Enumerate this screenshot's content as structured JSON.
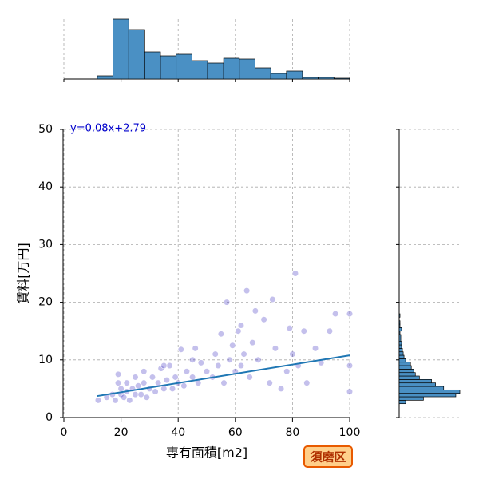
{
  "chart_data": [
    {
      "type": "scatter",
      "x_label": "専有面積[m2]",
      "y_label": "賃料[万円]",
      "color": "#3a2fc0",
      "x": [
        12,
        15,
        17,
        18,
        19,
        19,
        20,
        20,
        21,
        22,
        22,
        23,
        24,
        25,
        25,
        26,
        27,
        28,
        29,
        30,
        31,
        32,
        33,
        34,
        35,
        36,
        37,
        38,
        39,
        40,
        41,
        42,
        43,
        45,
        46,
        47,
        48,
        50,
        52,
        53,
        54,
        55,
        56,
        57,
        58,
        59,
        60,
        61,
        62,
        63,
        64,
        65,
        66,
        67,
        68,
        70,
        72,
        73,
        74,
        76,
        78,
        79,
        80,
        81,
        82,
        84,
        85,
        88,
        90,
        93,
        95,
        100,
        100,
        100,
        62,
        45,
        35,
        28
      ],
      "values": [
        3,
        3.5,
        4,
        3,
        6,
        7.5,
        4,
        5,
        3.5,
        4.5,
        6,
        3,
        5,
        4,
        7,
        5.5,
        4,
        6,
        3.5,
        5,
        7,
        4.5,
        6,
        8.5,
        5,
        6.5,
        9,
        5,
        7,
        6,
        11.8,
        5.5,
        8,
        7,
        12,
        6,
        9.5,
        8,
        7,
        11,
        9,
        14.5,
        6,
        20,
        10,
        12.5,
        8,
        15,
        9,
        11,
        22,
        7,
        13,
        18.5,
        10,
        17,
        6,
        20.5,
        12,
        5,
        8,
        15.5,
        11,
        25,
        9,
        15,
        6,
        12,
        9.5,
        15,
        18,
        18,
        9,
        4.5,
        16,
        10,
        9,
        8
      ],
      "fit": {
        "x": [
          11.7,
          100
        ],
        "values": [
          3.73,
          10.79
        ],
        "color": "#1f77b4",
        "label": "y=0.08x+2.79"
      },
      "xlim": [
        0,
        100
      ],
      "ylim": [
        0,
        50
      ],
      "xticks": [
        0,
        20,
        40,
        60,
        80,
        100
      ],
      "yticks": [
        0,
        10,
        20,
        30,
        40,
        50
      ],
      "grid": true,
      "badge": "須磨区"
    },
    {
      "type": "histogram",
      "orientation": "vertical",
      "color": "#4a90c4",
      "bins": [
        11.7,
        17.2,
        22.7,
        28.3,
        33.8,
        39.3,
        44.8,
        50.3,
        55.9,
        61.4,
        66.9,
        72.4,
        77.9,
        83.5,
        89.0,
        94.5,
        100.0
      ],
      "values": [
        4,
        75,
        62,
        34,
        29,
        31,
        23,
        20,
        26,
        25,
        14,
        7,
        10,
        2,
        2,
        1
      ]
    },
    {
      "type": "histogram",
      "orientation": "horizontal",
      "color": "#4a90c4",
      "bins": [
        2.4,
        3.0,
        3.6,
        4.2,
        4.8,
        5.4,
        6.0,
        6.6,
        7.2,
        7.8,
        8.4,
        9.0,
        9.6,
        10.2,
        10.8,
        11.4,
        12.0,
        12.6,
        13.2,
        13.8,
        14.4,
        15.0,
        15.6,
        16.2,
        16.8,
        17.4,
        18.0
      ],
      "values": [
        8,
        30,
        70,
        75,
        55,
        45,
        40,
        25,
        20,
        18,
        15,
        14,
        8,
        6,
        5,
        4,
        3,
        3,
        2,
        2,
        1,
        3,
        1,
        1,
        0,
        1
      ]
    }
  ]
}
